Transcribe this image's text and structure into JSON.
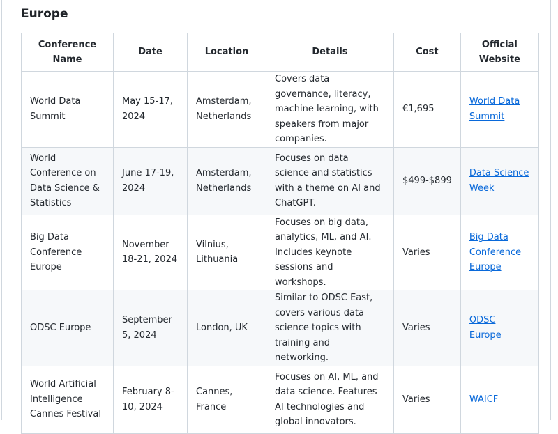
{
  "section_title": "Europe",
  "table": {
    "headers": [
      "Conference Name",
      "Date",
      "Location",
      "Details",
      "Cost",
      "Official Website"
    ],
    "rows": [
      {
        "name": "World Data Summit",
        "date": "May 15-17, 2024",
        "location": "Amsterdam, Netherlands",
        "details": "Covers data governance, literacy, machine learning, with speakers from major companies.",
        "cost": "€1,695",
        "website": "World Data Summit"
      },
      {
        "name": "World Conference on Data Science & Statistics",
        "date": "June 17-19, 2024",
        "location": "Amsterdam, Netherlands",
        "details": "Focuses on data science and statistics with a theme on AI and ChatGPT.",
        "cost": "$499-$899",
        "website": "Data Science Week"
      },
      {
        "name": "Big Data Conference Europe",
        "date": "November 18-21, 2024",
        "location": "Vilnius, Lithuania",
        "details": "Focuses on big data, analytics, ML, and AI. Includes keynote sessions and workshops.",
        "cost": "Varies",
        "website": "Big Data Conference Europe"
      },
      {
        "name": "ODSC Europe",
        "date": "September 5, 2024",
        "location": "London, UK",
        "details": "Similar to ODSC East, covers various data science topics with training and networking.",
        "cost": "Varies",
        "website": "ODSC Europe"
      },
      {
        "name": "World Artificial Intelligence Cannes Festival",
        "date": "February 8-10, 2024",
        "location": "Cannes, France",
        "details": "Focuses on AI, ML, and data science. Features AI technologies and global innovators.",
        "cost": "Varies",
        "website": "WAICF"
      }
    ]
  },
  "colors": {
    "link": "#0969da",
    "border": "#d0d7de",
    "alt_row": "#f6f8fa"
  }
}
